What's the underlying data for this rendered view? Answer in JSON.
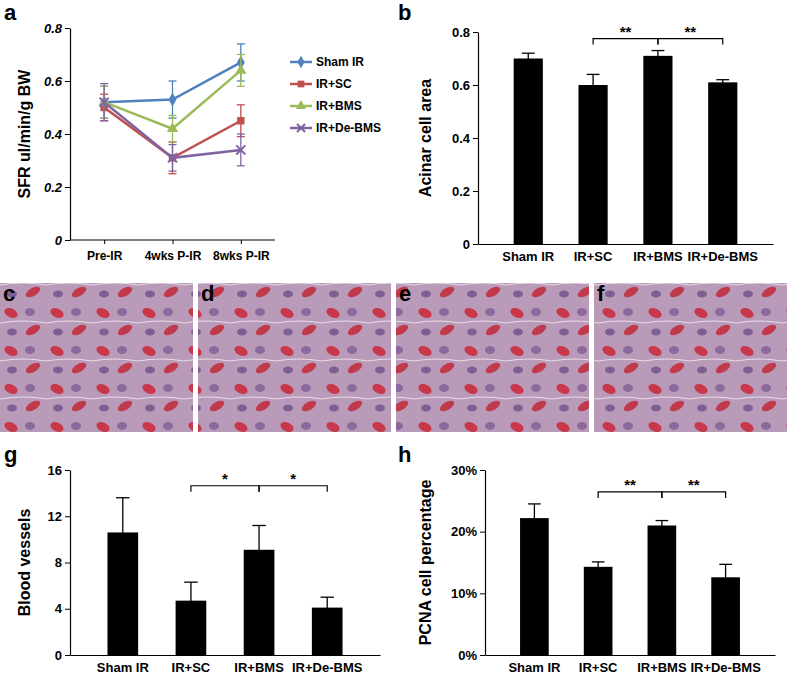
{
  "chart_data": [
    {
      "type": "line",
      "title": "a",
      "y_label": "SFR ul/min/g BW",
      "categories": [
        "Pre-IR",
        "4wks P-IR",
        "8wks P-IR"
      ],
      "ylim": [
        0,
        0.8
      ],
      "yticks": [
        0,
        0.2,
        0.4,
        0.6,
        0.8
      ],
      "grid": false,
      "legend": "right",
      "series": [
        {
          "name": "Sham IR",
          "color": "#4f81bd",
          "marker": "diamond",
          "values": [
            0.52,
            0.53,
            0.67
          ],
          "errors": [
            0.06,
            0.07,
            0.07
          ]
        },
        {
          "name": "IR+SC",
          "color": "#c0504d",
          "marker": "square",
          "values": [
            0.5,
            0.31,
            0.45
          ],
          "errors": [
            0.05,
            0.06,
            0.06
          ]
        },
        {
          "name": "IR+BMS",
          "color": "#9bbb59",
          "marker": "triangle",
          "values": [
            0.52,
            0.42,
            0.64
          ],
          "errors": [
            0.06,
            0.05,
            0.06
          ]
        },
        {
          "name": "IR+De-BMS",
          "color": "#8064a2",
          "marker": "x",
          "values": [
            0.52,
            0.31,
            0.34
          ],
          "errors": [
            0.07,
            0.05,
            0.06
          ]
        }
      ]
    },
    {
      "type": "bar",
      "title": "b",
      "y_label": "Acinar cell area",
      "categories": [
        "Sham IR",
        "IR+SC",
        "IR+BMS",
        "IR+De-BMS"
      ],
      "values": [
        0.7,
        0.6,
        0.71,
        0.61
      ],
      "errors": [
        0.02,
        0.04,
        0.02,
        0.01
      ],
      "color": "#000000",
      "ylim": [
        0,
        0.8
      ],
      "yticks": [
        0,
        0.2,
        0.4,
        0.6,
        0.8
      ],
      "grid": false,
      "annotations": [
        {
          "text": "**",
          "between": [
            "IR+SC",
            "IR+BMS"
          ]
        },
        {
          "text": "**",
          "between": [
            "IR+BMS",
            "IR+De-BMS"
          ]
        }
      ]
    },
    {
      "type": "bar",
      "title": "g",
      "y_label": "Blood vessels",
      "categories": [
        "Sham IR",
        "IR+SC",
        "IR+BMS",
        "IR+De-BMS"
      ],
      "values": [
        10.6,
        4.7,
        9.1,
        4.1
      ],
      "errors": [
        3.0,
        1.6,
        2.1,
        0.9
      ],
      "color": "#000000",
      "ylim": [
        0,
        16
      ],
      "yticks": [
        0,
        4,
        8,
        12,
        16
      ],
      "grid": false,
      "annotations": [
        {
          "text": "*",
          "between": [
            "IR+SC",
            "IR+BMS"
          ]
        },
        {
          "text": "*",
          "between": [
            "IR+BMS",
            "IR+De-BMS"
          ]
        }
      ]
    },
    {
      "type": "bar",
      "title": "h",
      "y_label": "PCNA cell percentage",
      "categories": [
        "Sham IR",
        "IR+SC",
        "IR+BMS",
        "IR+De-BMS"
      ],
      "values": [
        22.2,
        14.3,
        21.0,
        12.6
      ],
      "errors": [
        2.3,
        0.8,
        0.8,
        2.1
      ],
      "color": "#000000",
      "ylim": [
        0,
        30
      ],
      "yticks": [
        {
          "value": 0,
          "label": "0%"
        },
        {
          "value": 10,
          "label": "10%"
        },
        {
          "value": 20,
          "label": "20%"
        },
        {
          "value": 30,
          "label": "30%"
        }
      ],
      "grid": false,
      "annotations": [
        {
          "text": "**",
          "between": [
            "IR+SC",
            "IR+BMS"
          ]
        },
        {
          "text": "**",
          "between": [
            "IR+BMS",
            "IR+De-BMS"
          ]
        }
      ]
    }
  ],
  "images": [
    {
      "label": "c"
    },
    {
      "label": "d"
    },
    {
      "label": "e"
    },
    {
      "label": "f"
    }
  ]
}
